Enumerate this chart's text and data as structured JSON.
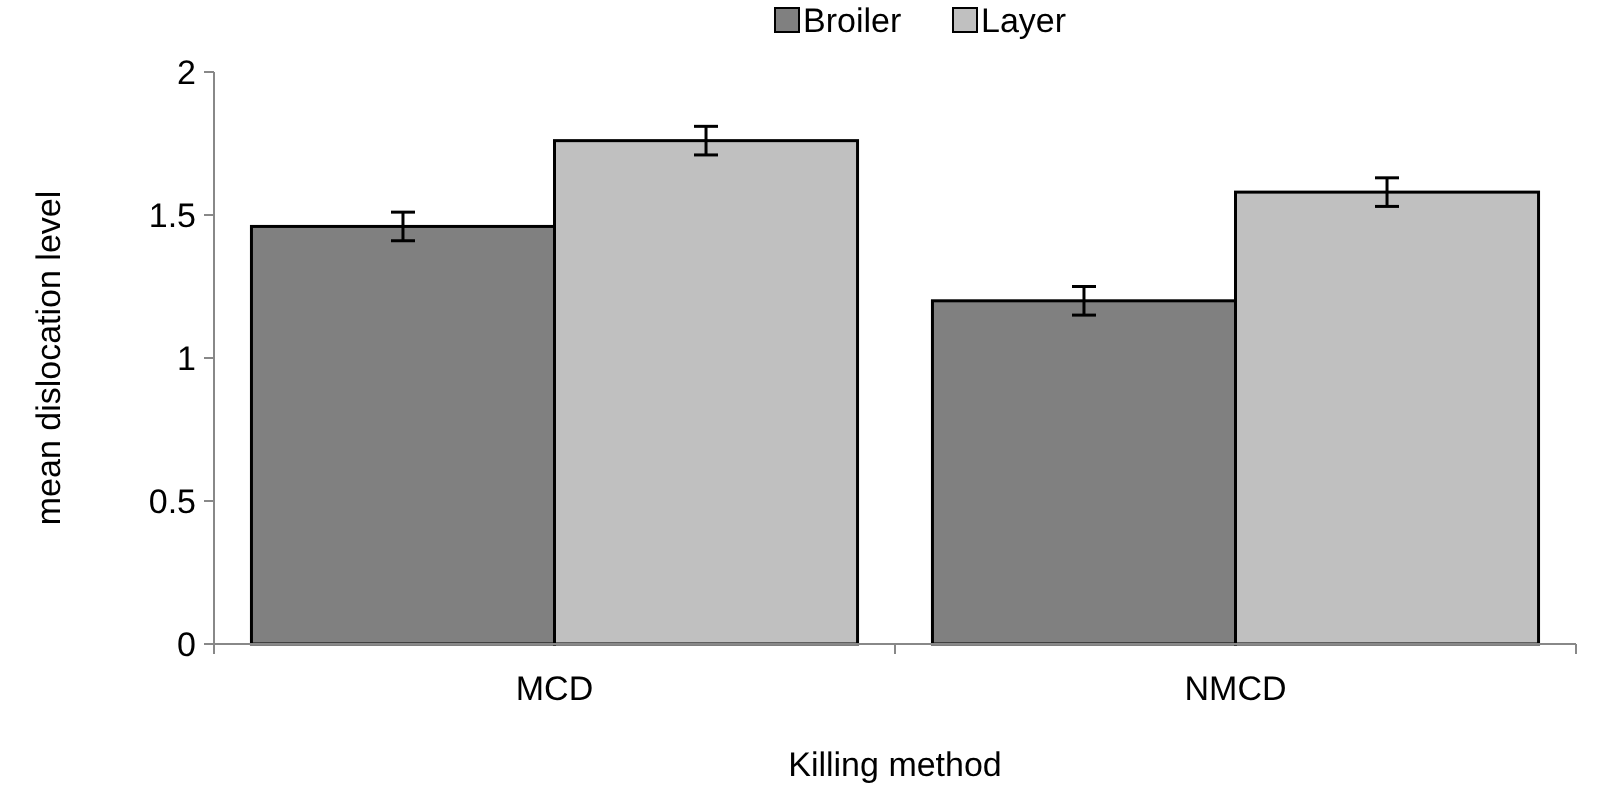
{
  "chart_data": {
    "type": "bar",
    "xlabel": "Killing method",
    "ylabel": "mean dislocation level",
    "categories": [
      "MCD",
      "NMCD"
    ],
    "series": [
      {
        "name": "Broiler",
        "color": "#808080",
        "values": [
          1.46,
          1.2
        ],
        "errors": [
          0.05,
          0.05
        ]
      },
      {
        "name": "Layer",
        "color": "#c0c0c0",
        "values": [
          1.76,
          1.58
        ],
        "errors": [
          0.05,
          0.05
        ]
      }
    ],
    "ylim": [
      0,
      2
    ],
    "yticks": [
      0,
      0.5,
      1,
      1.5,
      2
    ],
    "legend": "top",
    "grid": false
  }
}
